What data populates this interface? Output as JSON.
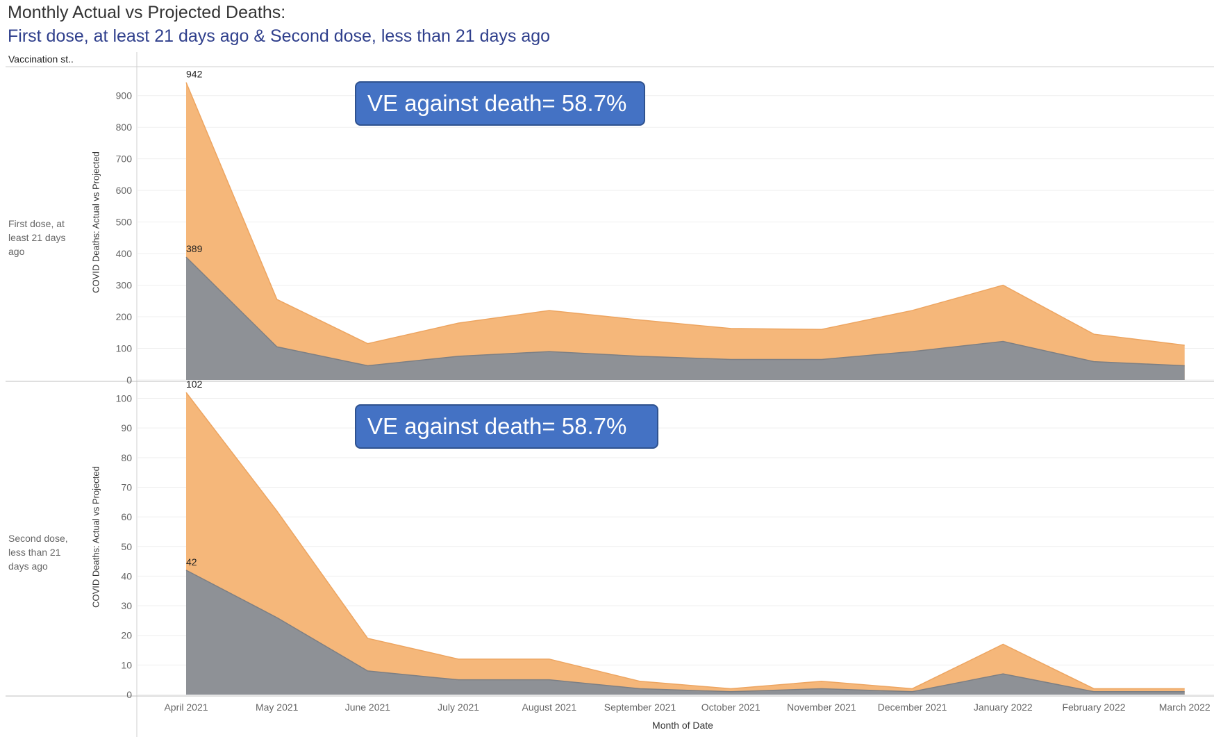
{
  "header": {
    "title": "Monthly Actual vs Projected Deaths:",
    "subtitle": "First dose, at least 21 days ago & Second dose, less than 21 days ago",
    "column_header": "Vaccination st.."
  },
  "colors": {
    "projected": "#f5b77a",
    "actual": "#8e9196",
    "annotation": "#4472c4"
  },
  "chart_data": [
    {
      "type": "area",
      "row_label": "First dose, at least 21 days ago",
      "ylabel": "COVID Deaths: Actual vs Projected",
      "xlabel": "Month of Date",
      "categories": [
        "April 2021",
        "May 2021",
        "June 2021",
        "July 2021",
        "August 2021",
        "September 2021",
        "October 2021",
        "November 2021",
        "December 2021",
        "January 2022",
        "February 2022",
        "March 2022"
      ],
      "ylim": [
        0,
        950
      ],
      "yticks": [
        0,
        100,
        200,
        300,
        400,
        500,
        600,
        700,
        800,
        900
      ],
      "series": [
        {
          "role": "projected",
          "values": [
            942,
            255,
            115,
            180,
            220,
            190,
            163,
            160,
            220,
            300,
            145,
            110
          ]
        },
        {
          "role": "actual",
          "values": [
            389,
            105,
            45,
            75,
            90,
            75,
            65,
            65,
            90,
            122,
            58,
            45
          ]
        }
      ],
      "data_labels": [
        {
          "series": "projected",
          "index": 0,
          "text": "942"
        },
        {
          "series": "actual",
          "index": 0,
          "text": "389"
        }
      ],
      "annotation": "VE against death= 58.7%",
      "grid": true
    },
    {
      "type": "area",
      "row_label": "Second dose, less than 21 days ago",
      "ylabel": "COVID Deaths: Actual vs Projected",
      "xlabel": "Month of Date",
      "categories": [
        "April 2021",
        "May 2021",
        "June 2021",
        "July 2021",
        "August 2021",
        "September 2021",
        "October 2021",
        "November 2021",
        "December 2021",
        "January 2022",
        "February 2022",
        "March 2022"
      ],
      "ylim": [
        0,
        102
      ],
      "yticks": [
        0,
        10,
        20,
        30,
        40,
        50,
        60,
        70,
        80,
        90,
        100
      ],
      "series": [
        {
          "role": "projected",
          "values": [
            102,
            62,
            19,
            12,
            12,
            4.5,
            2,
            4.5,
            2,
            17,
            2,
            2
          ]
        },
        {
          "role": "actual",
          "values": [
            42,
            26,
            8,
            5,
            5,
            2,
            1,
            2,
            1,
            7,
            1,
            1
          ]
        }
      ],
      "data_labels": [
        {
          "series": "projected",
          "index": 0,
          "text": "102"
        },
        {
          "series": "actual",
          "index": 0,
          "text": "42"
        }
      ],
      "annotation": "VE against death= 58.7%",
      "grid": true
    }
  ]
}
